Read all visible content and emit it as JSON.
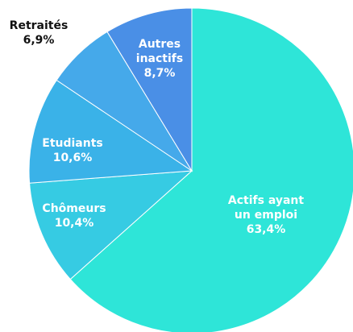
{
  "chart_data": {
    "type": "pie",
    "categories": [
      "Actifs ayant un emploi",
      "Chômeurs",
      "Etudiants",
      "Retraités",
      "Autres inactifs"
    ],
    "values": [
      63.4,
      10.4,
      10.6,
      6.9,
      8.7
    ],
    "value_labels": [
      "63,4%",
      "10,4%",
      "10,6%",
      "6,9%",
      "8,7%"
    ],
    "colors": [
      "#2ee5d8",
      "#36cbe3",
      "#3ab2e8",
      "#45a9ea",
      "#4a8fe6"
    ]
  }
}
